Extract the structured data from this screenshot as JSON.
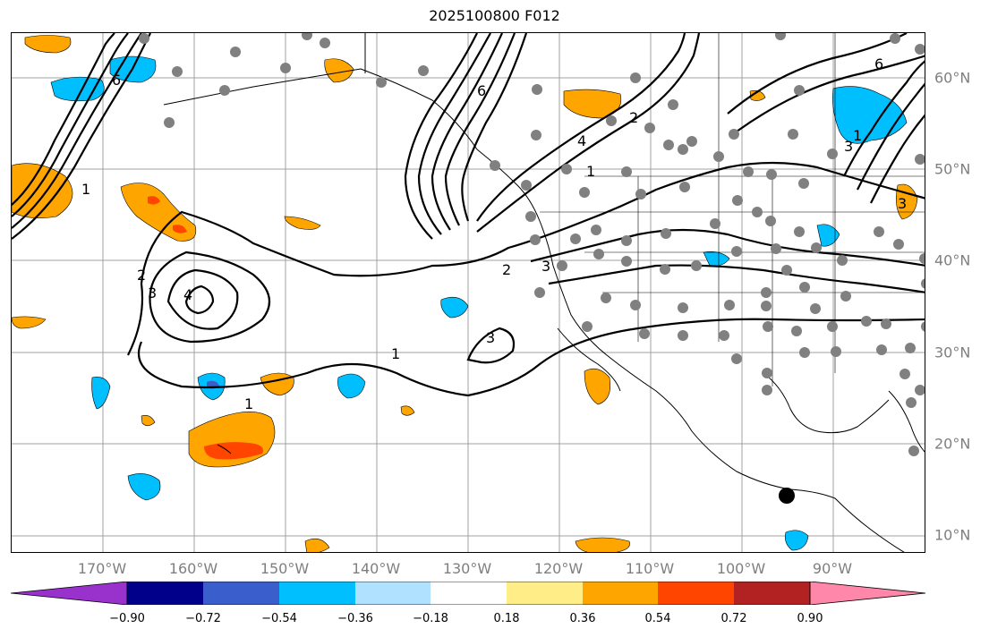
{
  "title": "2025100800 F012",
  "lon_labels": [
    "170°W",
    "160°W",
    "150°W",
    "140°W",
    "130°W",
    "120°W",
    "110°W",
    "100°W",
    "90°W"
  ],
  "lat_labels": [
    "60°N",
    "50°N",
    "40°N",
    "30°N",
    "20°N",
    "10°N"
  ],
  "colorbar": {
    "ticks": [
      "−0.90",
      "−0.72",
      "−0.54",
      "−0.36",
      "−0.18",
      "0.18",
      "0.36",
      "0.54",
      "0.72",
      "0.90"
    ],
    "colors": [
      "#9932cc",
      "#00008b",
      "#3a5fcd",
      "#00bfff",
      "#b0e2ff",
      "#ffffff",
      "#ffee88",
      "#ffa500",
      "#ff4500",
      "#b22222",
      "#ff88aa"
    ]
  },
  "contour_labels": [
    "6",
    "1",
    "1",
    "2",
    "3",
    "4",
    "1",
    "2",
    "3",
    "3",
    "6",
    "2",
    "4",
    "1",
    "3",
    "1",
    "6",
    "3"
  ],
  "storm_marker": "black-dot"
}
